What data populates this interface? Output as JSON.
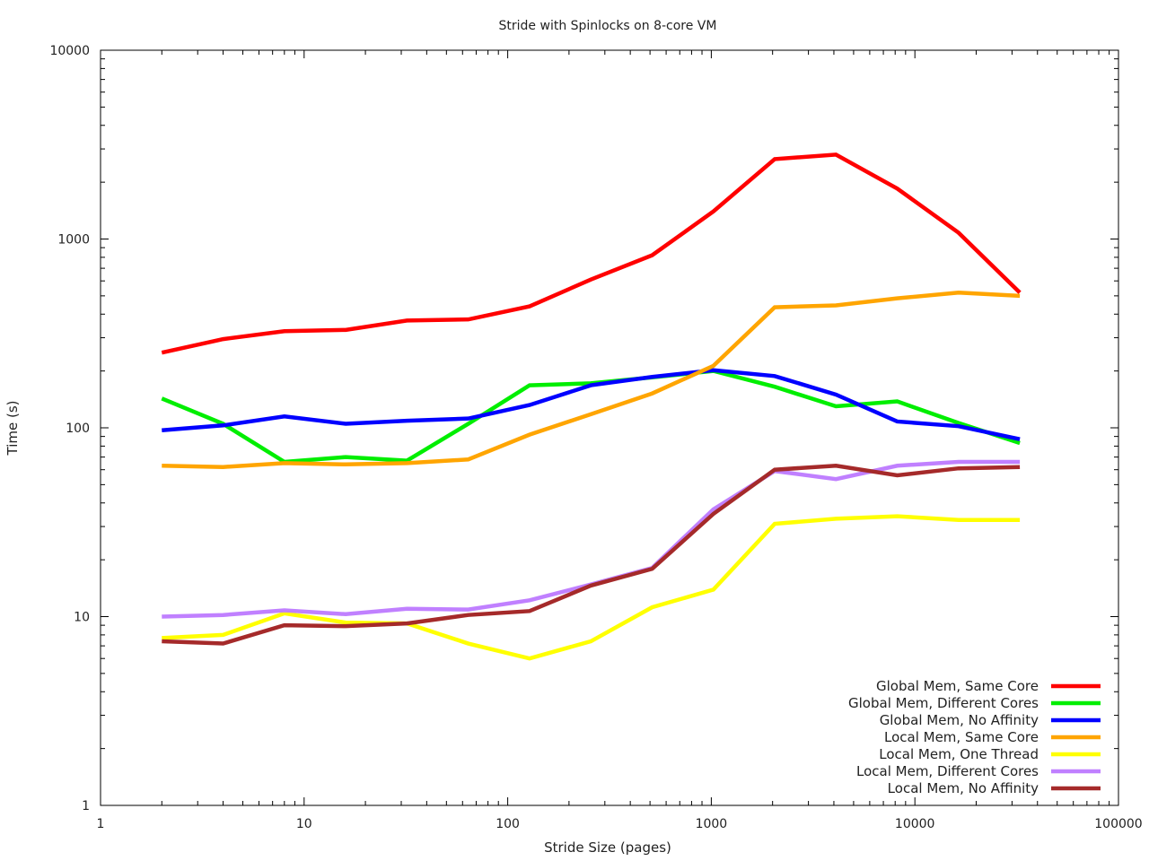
{
  "chart_data": {
    "type": "line",
    "title": "Stride with Spinlocks on 8-core VM",
    "xlabel": "Stride Size (pages)",
    "ylabel": "Time (s)",
    "xscale": "log",
    "yscale": "log",
    "xlim": [
      1,
      100000
    ],
    "ylim": [
      1,
      10000
    ],
    "xticks": [
      "1",
      "10",
      "100",
      "1000",
      "10000",
      "100000"
    ],
    "yticks": [
      "1",
      "10",
      "100",
      "1000",
      "10000"
    ],
    "grid": false,
    "legend_position": "bottom-right",
    "x": [
      2,
      4,
      8,
      16,
      32,
      64,
      128,
      256,
      512,
      1024,
      2048,
      4096,
      8192,
      16384,
      32768
    ],
    "series": [
      {
        "name": "Global Mem,  Same Core",
        "color": "#ff0000",
        "values": [
          250,
          295,
          325,
          330,
          370,
          375,
          440,
          610,
          820,
          1400,
          2650,
          2800,
          1850,
          1080,
          520
        ]
      },
      {
        "name": "Global Mem,  Different Cores",
        "color": "#00ee00",
        "values": [
          143,
          105,
          66,
          70,
          67,
          105,
          168,
          172,
          185,
          200,
          165,
          130,
          138,
          106,
          83
        ]
      },
      {
        "name": "Global Mem,  No Affinity",
        "color": "#0000ff",
        "values": [
          97,
          103,
          115,
          105,
          109,
          112,
          132,
          168,
          186,
          202,
          188,
          150,
          108,
          102,
          87
        ]
      },
      {
        "name": "Local Mem,  Same Core",
        "color": "#ffa500",
        "values": [
          63,
          62,
          65,
          64,
          65,
          68,
          92,
          118,
          152,
          213,
          435,
          445,
          485,
          520,
          500
        ]
      },
      {
        "name": "Local Mem,  One Thread",
        "color": "#ffff00",
        "values": [
          7.7,
          8,
          10.4,
          9.3,
          9.2,
          7.2,
          6.0,
          7.4,
          11.2,
          13.9,
          31,
          33,
          34,
          32.5,
          32.5
        ]
      },
      {
        "name": "Local Mem,  Different Cores",
        "color": "#c080ff",
        "values": [
          10,
          10.2,
          10.8,
          10.3,
          11,
          10.9,
          12.2,
          14.8,
          18.1,
          37,
          59,
          53.5,
          63,
          66,
          66
        ]
      },
      {
        "name": "Local Mem,  No Affinity",
        "color": "#a52a2a",
        "values": [
          7.4,
          7.2,
          9,
          8.9,
          9.2,
          10.2,
          10.7,
          14.6,
          17.9,
          35,
          60,
          63,
          56,
          61,
          62
        ]
      }
    ]
  }
}
